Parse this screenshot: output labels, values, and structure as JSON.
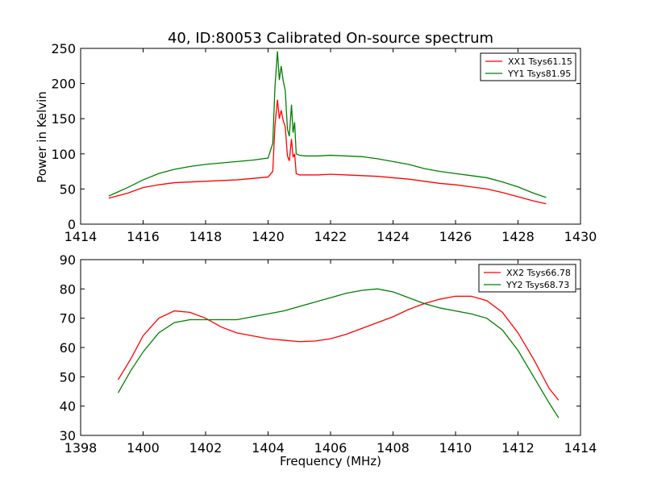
{
  "figure": {
    "title": "40, ID:80053 Calibrated On-source spectrum",
    "xlabel": "Frequency (MHz)",
    "ylabel": "Power in Kelvin"
  },
  "colors": {
    "xx": "#ff0000",
    "yy": "#008000"
  },
  "chart_data": [
    {
      "type": "line",
      "title": "40, ID:80053 Calibrated On-source spectrum",
      "xlabel": "",
      "ylabel": "Power in Kelvin",
      "xlim": [
        1414,
        1430
      ],
      "ylim": [
        0,
        250
      ],
      "xticks": [
        1414,
        1416,
        1418,
        1420,
        1422,
        1424,
        1426,
        1428,
        1430
      ],
      "yticks": [
        0,
        50,
        100,
        150,
        200,
        250
      ],
      "grid": false,
      "legend": "top-right",
      "series": [
        {
          "name": "XX1 Tsys61.15",
          "color": "#ff0000",
          "x": [
            1414.9,
            1415.5,
            1416.0,
            1416.5,
            1417.0,
            1417.5,
            1418.0,
            1418.5,
            1419.0,
            1419.5,
            1420.0,
            1420.15,
            1420.22,
            1420.3,
            1420.36,
            1420.42,
            1420.48,
            1420.55,
            1420.62,
            1420.68,
            1420.75,
            1420.8,
            1420.85,
            1420.9,
            1421.0,
            1421.2,
            1421.6,
            1422.0,
            1422.5,
            1423.0,
            1423.5,
            1424.0,
            1424.5,
            1425.0,
            1425.5,
            1426.0,
            1426.5,
            1427.0,
            1427.5,
            1428.0,
            1428.5,
            1428.9
          ],
          "y": [
            37,
            44,
            52,
            56,
            59,
            60,
            61,
            62,
            63,
            65,
            67,
            75,
            140,
            177,
            150,
            162,
            148,
            138,
            97,
            90,
            121,
            95,
            100,
            72,
            70,
            70,
            70,
            71,
            70,
            69,
            68,
            66,
            64,
            61,
            58,
            56,
            53,
            50,
            45,
            39,
            33,
            29
          ]
        },
        {
          "name": "YY1 Tsys81.95",
          "color": "#008000",
          "x": [
            1414.9,
            1415.5,
            1416.0,
            1416.5,
            1417.0,
            1417.5,
            1418.0,
            1418.5,
            1419.0,
            1419.5,
            1420.0,
            1420.15,
            1420.22,
            1420.3,
            1420.36,
            1420.42,
            1420.48,
            1420.55,
            1420.62,
            1420.68,
            1420.75,
            1420.8,
            1420.85,
            1420.9,
            1421.0,
            1421.2,
            1421.6,
            1422.0,
            1422.5,
            1423.0,
            1423.5,
            1424.0,
            1424.5,
            1425.0,
            1425.5,
            1426.0,
            1426.5,
            1427.0,
            1427.5,
            1428.0,
            1428.5,
            1428.9
          ],
          "y": [
            40,
            52,
            63,
            72,
            78,
            82,
            85,
            87,
            89,
            91,
            94,
            115,
            195,
            246,
            205,
            225,
            205,
            190,
            135,
            125,
            170,
            130,
            145,
            100,
            98,
            97,
            97,
            98,
            97,
            96,
            93,
            89,
            85,
            79,
            75,
            72,
            69,
            66,
            60,
            53,
            44,
            38
          ]
        }
      ]
    },
    {
      "type": "line",
      "title": "",
      "xlabel": "Frequency (MHz)",
      "ylabel": "",
      "xlim": [
        1398,
        1414
      ],
      "ylim": [
        30,
        90
      ],
      "xticks": [
        1398,
        1400,
        1402,
        1404,
        1406,
        1408,
        1410,
        1412,
        1414
      ],
      "yticks": [
        30,
        40,
        50,
        60,
        70,
        80,
        90
      ],
      "grid": false,
      "legend": "top-right",
      "series": [
        {
          "name": "XX2 Tsys66.78",
          "color": "#ff0000",
          "x": [
            1399.2,
            1399.6,
            1400.0,
            1400.5,
            1401.0,
            1401.5,
            1402.0,
            1402.5,
            1403.0,
            1403.5,
            1404.0,
            1404.5,
            1405.0,
            1405.5,
            1406.0,
            1406.5,
            1407.0,
            1407.5,
            1408.0,
            1408.5,
            1409.0,
            1409.5,
            1410.0,
            1410.5,
            1411.0,
            1411.5,
            1412.0,
            1412.5,
            1413.0,
            1413.3
          ],
          "y": [
            49,
            56,
            64,
            70,
            72.5,
            72,
            70,
            67,
            65,
            64,
            63,
            62.5,
            62,
            62.2,
            63,
            64.5,
            66.5,
            68.5,
            70.5,
            73,
            75,
            76.5,
            77.5,
            77.5,
            76,
            72,
            65,
            56,
            46,
            42
          ]
        },
        {
          "name": "YY2 Tsys68.73",
          "color": "#008000",
          "x": [
            1399.2,
            1399.6,
            1400.0,
            1400.5,
            1401.0,
            1401.5,
            1402.0,
            1402.5,
            1403.0,
            1403.5,
            1404.0,
            1404.5,
            1405.0,
            1405.5,
            1406.0,
            1406.5,
            1407.0,
            1407.5,
            1408.0,
            1408.5,
            1409.0,
            1409.5,
            1410.0,
            1410.5,
            1411.0,
            1411.5,
            1412.0,
            1412.5,
            1413.0,
            1413.3
          ],
          "y": [
            44.5,
            52,
            58.5,
            65,
            68.5,
            69.5,
            69.5,
            69.5,
            69.5,
            70.5,
            71.5,
            72.5,
            74,
            75.5,
            77,
            78.5,
            79.5,
            80,
            79,
            77,
            75,
            73.5,
            72.5,
            71.5,
            70,
            66,
            59,
            50,
            41,
            36
          ]
        }
      ]
    }
  ]
}
